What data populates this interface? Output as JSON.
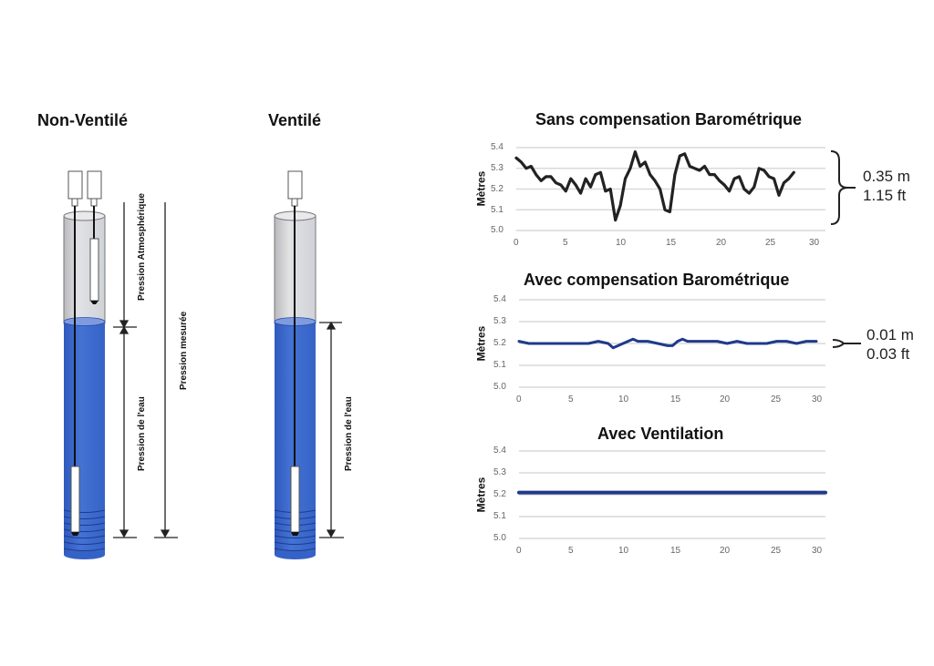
{
  "diagrams": {
    "non_ventile": {
      "title": "Non-Ventilé",
      "labels": {
        "atmospheric": "Pression Atmosphérique",
        "measured": "Pression mesurée",
        "water": "Pression de l'eau"
      }
    },
    "ventile": {
      "title": "Ventilé",
      "labels": {
        "water": "Pression de l'eau"
      }
    }
  },
  "colors": {
    "water": "#3d66c8",
    "water_dark": "#2a4ea6",
    "tube_gray": "#d3d3d6",
    "line_raw": "#222222",
    "line_comp": "#1f3a8a",
    "grid": "#d9d9d9"
  },
  "chart_data": [
    {
      "type": "line",
      "title": "Sans compensation Barométrique",
      "xlabel": "",
      "ylabel": "Mètres",
      "xlim": [
        0,
        30
      ],
      "ylim": [
        5.0,
        5.4
      ],
      "x_ticks": [
        "0",
        "5",
        "10",
        "15",
        "20",
        "25",
        "30"
      ],
      "y_ticks": [
        "5.0",
        "5.1",
        "5.2",
        "5.3",
        "5.4"
      ],
      "grid": true,
      "annotation": {
        "line1": "0.35 m",
        "line2": "1.15 ft"
      },
      "series": [
        {
          "name": "Sans compensation",
          "x": [
            0,
            0.5,
            1,
            1.5,
            2,
            2.5,
            3,
            3.5,
            4,
            4.5,
            5,
            5.5,
            6,
            6.5,
            7,
            7.5,
            8,
            8.5,
            9,
            9.5,
            10,
            10.5,
            11,
            11.5,
            12,
            12.5,
            13,
            13.5,
            14,
            14.5,
            15,
            15.5,
            16,
            16.5,
            17,
            17.5,
            18,
            18.5,
            19,
            19.5,
            20,
            20.5,
            21,
            21.5,
            22,
            22.5,
            23,
            23.5,
            24,
            24.5,
            25,
            25.5,
            26,
            26.5,
            27,
            27.5,
            28
          ],
          "values": [
            5.35,
            5.33,
            5.3,
            5.31,
            5.27,
            5.24,
            5.26,
            5.26,
            5.23,
            5.22,
            5.19,
            5.25,
            5.22,
            5.18,
            5.25,
            5.21,
            5.27,
            5.28,
            5.19,
            5.2,
            5.05,
            5.12,
            5.25,
            5.3,
            5.38,
            5.31,
            5.33,
            5.27,
            5.24,
            5.2,
            5.1,
            5.09,
            5.27,
            5.36,
            5.37,
            5.31,
            5.3,
            5.29,
            5.31,
            5.27,
            5.27,
            5.24,
            5.22,
            5.19,
            5.25,
            5.26,
            5.2,
            5.18,
            5.21,
            5.3,
            5.29,
            5.26,
            5.25,
            5.17,
            5.23,
            5.25,
            5.28
          ]
        }
      ]
    },
    {
      "type": "line",
      "title": "Avec compensation Barométrique",
      "xlabel": "",
      "ylabel": "Mètres",
      "xlim": [
        0,
        30
      ],
      "ylim": [
        5.0,
        5.4
      ],
      "x_ticks": [
        "0",
        "5",
        "10",
        "15",
        "20",
        "25",
        "30"
      ],
      "y_ticks": [
        "5.0",
        "5.1",
        "5.2",
        "5.3",
        "5.4"
      ],
      "grid": true,
      "annotation": {
        "line1": "0.01 m",
        "line2": "0.03 ft"
      },
      "series": [
        {
          "name": "Avec compensation",
          "x": [
            0,
            1,
            2,
            3,
            4,
            5,
            6,
            7,
            8,
            9,
            9.5,
            10,
            11,
            11.5,
            12,
            13,
            14,
            15,
            15.5,
            16,
            16.5,
            17,
            18,
            19,
            20,
            21,
            22,
            23,
            24,
            25,
            26,
            27,
            28,
            29,
            30
          ],
          "values": [
            5.21,
            5.2,
            5.2,
            5.2,
            5.2,
            5.2,
            5.2,
            5.2,
            5.21,
            5.2,
            5.18,
            5.19,
            5.21,
            5.22,
            5.21,
            5.21,
            5.2,
            5.19,
            5.19,
            5.21,
            5.22,
            5.21,
            5.21,
            5.21,
            5.21,
            5.2,
            5.21,
            5.2,
            5.2,
            5.2,
            5.21,
            5.21,
            5.2,
            5.21,
            5.21
          ]
        }
      ]
    },
    {
      "type": "line",
      "title": "Avec Ventilation",
      "xlabel": "",
      "ylabel": "Mètres",
      "xlim": [
        0,
        30
      ],
      "ylim": [
        5.0,
        5.4
      ],
      "x_ticks": [
        "0",
        "5",
        "10",
        "15",
        "20",
        "25",
        "30"
      ],
      "y_ticks": [
        "5.0",
        "5.1",
        "5.2",
        "5.3",
        "5.4"
      ],
      "grid": true,
      "series": [
        {
          "name": "Avec ventilation",
          "x": [
            0,
            30
          ],
          "values": [
            5.21,
            5.21
          ]
        }
      ]
    }
  ]
}
